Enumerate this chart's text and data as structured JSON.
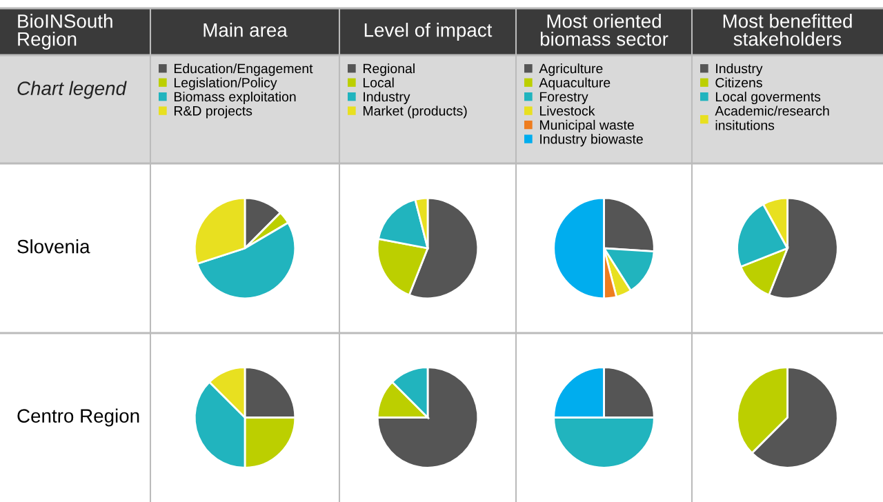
{
  "chart_data": [
    {
      "type": "pie",
      "title": "Main area",
      "annotations": [
        "BioINSouth Region",
        "Chart legend"
      ],
      "legend": "top",
      "categories": [
        "Education/Engagement",
        "Legislation/Policy",
        "Biomass exploitation",
        "R&D projects"
      ],
      "colors": [
        "#555555",
        "#bccf00",
        "#21b4be",
        "#e8e020"
      ],
      "series": [
        {
          "name": "Slovenia",
          "values": [
            12.5,
            4,
            53.5,
            30
          ]
        },
        {
          "name": "Centro Region",
          "values": [
            25,
            25,
            37.5,
            12.5
          ]
        }
      ]
    },
    {
      "type": "pie",
      "title": "Level of impact",
      "legend": "top",
      "categories": [
        "Regional",
        "Local",
        "Industry",
        "Market (products)"
      ],
      "colors": [
        "#555555",
        "#bccf00",
        "#21b4be",
        "#e8e020"
      ],
      "series": [
        {
          "values": [
            56,
            22,
            18,
            4
          ]
        },
        {
          "values": [
            75,
            12.5,
            12.5,
            0
          ]
        }
      ]
    },
    {
      "type": "pie",
      "title": "Most oriented biomass sector",
      "legend": "top",
      "categories": [
        "Agriculture",
        "Aquaculture",
        "Forestry",
        "Livestock",
        "Municipal waste",
        "Industry biowaste"
      ],
      "colors": [
        "#555555",
        "#bccf00",
        "#21b4be",
        "#e8e020",
        "#ee7d1f",
        "#00adee"
      ],
      "series": [
        {
          "values": [
            26,
            0,
            15,
            5,
            4,
            50
          ]
        },
        {
          "values": [
            25,
            0,
            50,
            0,
            0,
            25
          ]
        }
      ]
    },
    {
      "type": "pie",
      "title": "Most benefitted stakeholders",
      "legend": "top",
      "categories": [
        "Industry",
        "Citizens",
        "Local goverments",
        "Academic/research insitutions"
      ],
      "colors": [
        "#555555",
        "#bccf00",
        "#21b4be",
        "#e8e020"
      ],
      "series": [
        {
          "values": [
            56,
            13,
            23,
            8
          ]
        },
        {
          "values": [
            62.5,
            37.5,
            0,
            0
          ]
        }
      ]
    }
  ]
}
